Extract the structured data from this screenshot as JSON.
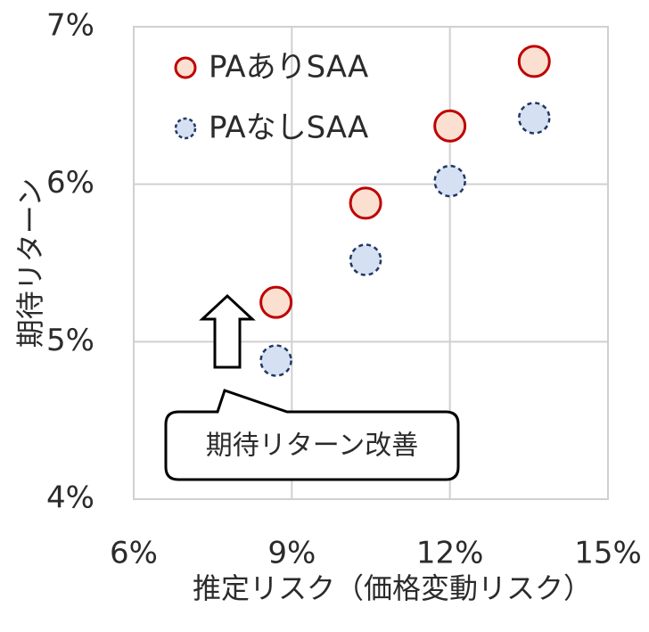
{
  "chart_data": {
    "type": "scatter",
    "xlabel": "推定リスク（価格変動リスク）",
    "ylabel": "期待リターン",
    "xlim": [
      6,
      15
    ],
    "ylim": [
      4,
      7
    ],
    "x_ticks": [
      "6%",
      "9%",
      "12%",
      "15%"
    ],
    "y_ticks": [
      "4%",
      "5%",
      "6%",
      "7%"
    ],
    "grid": true,
    "legend_position": "top-left",
    "series": [
      {
        "name": "PAありSAA",
        "color": "#c00000",
        "fill": "#fbe0d2",
        "marker": "circle-solid",
        "points": [
          {
            "x": 8.7,
            "y": 5.25
          },
          {
            "x": 10.4,
            "y": 5.88
          },
          {
            "x": 12.0,
            "y": 6.37
          },
          {
            "x": 13.6,
            "y": 6.78
          }
        ]
      },
      {
        "name": "PAなしSAA",
        "color": "#1f3864",
        "fill": "#d6e0f3",
        "marker": "circle-dashed",
        "points": [
          {
            "x": 8.7,
            "y": 4.88
          },
          {
            "x": 10.4,
            "y": 5.52
          },
          {
            "x": 12.0,
            "y": 6.02
          },
          {
            "x": 13.6,
            "y": 6.42
          }
        ]
      }
    ],
    "annotation": {
      "text": "期待リターン改善",
      "icon": "up-arrow-icon"
    }
  }
}
